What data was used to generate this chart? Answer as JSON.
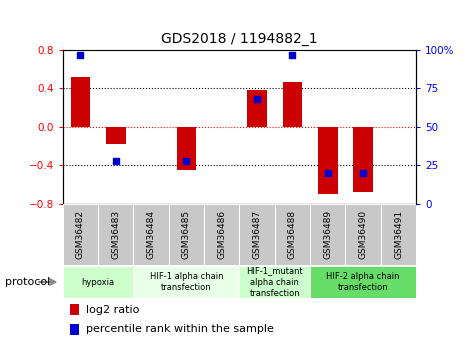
{
  "title": "GDS2018 / 1194882_1",
  "samples": [
    "GSM36482",
    "GSM36483",
    "GSM36484",
    "GSM36485",
    "GSM36486",
    "GSM36487",
    "GSM36488",
    "GSM36489",
    "GSM36490",
    "GSM36491"
  ],
  "log2_ratio": [
    0.52,
    -0.18,
    0.0,
    -0.45,
    0.0,
    0.38,
    0.47,
    -0.7,
    -0.68,
    0.0
  ],
  "percentile_rank": [
    97,
    28,
    null,
    28,
    null,
    68,
    97,
    20,
    20,
    null
  ],
  "ylim": [
    -0.8,
    0.8
  ],
  "yticks_left": [
    -0.8,
    -0.4,
    0.0,
    0.4,
    0.8
  ],
  "yticks_right": [
    0,
    25,
    50,
    75,
    100
  ],
  "bar_color": "#cc0000",
  "dot_color": "#0000cc",
  "protocols": [
    {
      "label": "hypoxia",
      "start": 0,
      "end": 2,
      "color": "#ccffcc"
    },
    {
      "label": "HIF-1 alpha chain\ntransfection",
      "start": 2,
      "end": 5,
      "color": "#e8ffe8"
    },
    {
      "label": "HIF-1_mutant\nalpha chain\ntransfection",
      "start": 5,
      "end": 7,
      "color": "#ccffcc"
    },
    {
      "label": "HIF-2 alpha chain\ntransfection",
      "start": 7,
      "end": 10,
      "color": "#66dd66"
    }
  ],
  "legend_log2_label": "log2 ratio",
  "legend_pct_label": "percentile rank within the sample",
  "xlabel_protocol": "protocol",
  "bar_width": 0.55,
  "dot_size": 22
}
